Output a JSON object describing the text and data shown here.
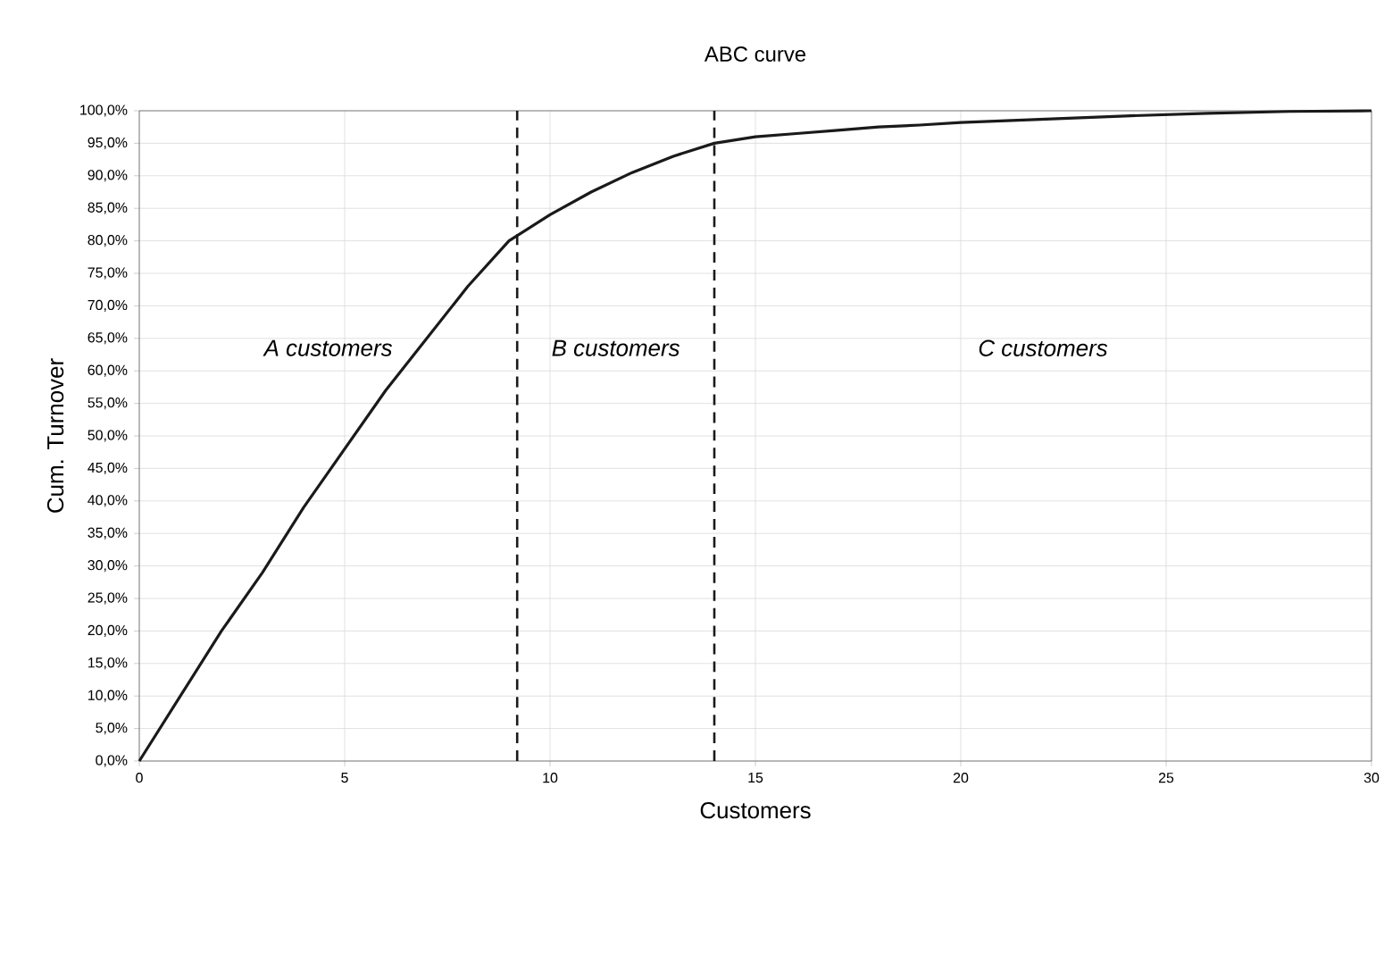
{
  "chart_data": {
    "type": "line",
    "title": "ABC curve",
    "xlabel": "Customers",
    "ylabel": "Cum. Turnover",
    "x": [
      0,
      1,
      2,
      3,
      4,
      5,
      6,
      7,
      8,
      9,
      10,
      11,
      12,
      13,
      14,
      15,
      16,
      17,
      18,
      19,
      20,
      22,
      24,
      26,
      28,
      30
    ],
    "series": [
      {
        "color": "#1a1a1a",
        "values": [
          0,
          10,
          20,
          29,
          39,
          48,
          57,
          65,
          73,
          80,
          84,
          87.5,
          90.5,
          93,
          95,
          96,
          96.5,
          97,
          97.5,
          97.8,
          98.2,
          98.7,
          99.2,
          99.6,
          99.9,
          100
        ]
      }
    ],
    "line_style": "solid",
    "marker": "none",
    "grid": true,
    "xlim": [
      0,
      30
    ],
    "xticks": [
      0,
      5,
      10,
      15,
      20,
      25,
      30
    ],
    "ylim": [
      0,
      100
    ],
    "yticks": [
      {
        "value": 0,
        "label": "0,0%"
      },
      {
        "value": 5,
        "label": "5,0%"
      },
      {
        "value": 10,
        "label": "10,0%"
      },
      {
        "value": 15,
        "label": "15,0%"
      },
      {
        "value": 20,
        "label": "20,0%"
      },
      {
        "value": 25,
        "label": "25,0%"
      },
      {
        "value": 30,
        "label": "30,0%"
      },
      {
        "value": 35,
        "label": "35,0%"
      },
      {
        "value": 40,
        "label": "40,0%"
      },
      {
        "value": 45,
        "label": "45,0%"
      },
      {
        "value": 50,
        "label": "50,0%"
      },
      {
        "value": 55,
        "label": "55,0%"
      },
      {
        "value": 60,
        "label": "60,0%"
      },
      {
        "value": 65,
        "label": "65,0%"
      },
      {
        "value": 70,
        "label": "70,0%"
      },
      {
        "value": 75,
        "label": "75,0%"
      },
      {
        "value": 80,
        "label": "80,0%"
      },
      {
        "value": 85,
        "label": "85,0%"
      },
      {
        "value": 90,
        "label": "90,0%"
      },
      {
        "value": 95,
        "label": "95,0%"
      },
      {
        "value": 100,
        "label": "100,0%"
      }
    ],
    "ref_lines": [
      {
        "axis": "x",
        "value": 9.2,
        "color": "#1a1a1a",
        "line_style": "dashed"
      },
      {
        "axis": "x",
        "value": 14,
        "color": "#1a1a1a",
        "line_style": "dashed"
      }
    ],
    "annotations": [
      "*A customers*",
      "*B customers*",
      "*C customers*"
    ]
  }
}
